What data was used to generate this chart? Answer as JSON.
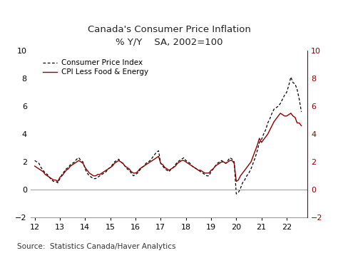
{
  "title_line1": "Canada's Consumer Price Inflation",
  "title_line2": "% Y/Y    SA, 2002=100",
  "source": "Source:  Statistics Canada/Haver Analytics",
  "legend": [
    "Consumer Price Index",
    "CPI Less Food & Energy"
  ],
  "cpi_color": "#000000",
  "core_color": "#8B0000",
  "ylim": [
    -2,
    10
  ],
  "yticks": [
    -2,
    0,
    2,
    4,
    6,
    8,
    10
  ],
  "xtick_labels": [
    "12",
    "13",
    "14",
    "15",
    "16",
    "17",
    "18",
    "19",
    "20",
    "21",
    "22"
  ],
  "xlim_start": 2011.83,
  "xlim_end": 2022.83,
  "background_color": "#ffffff",
  "cpi": [
    2.1,
    2.0,
    1.9,
    1.6,
    1.4,
    1.2,
    1.1,
    0.9,
    0.7,
    0.6,
    0.6,
    0.5,
    0.8,
    1.1,
    1.3,
    1.5,
    1.6,
    1.8,
    1.9,
    2.0,
    2.2,
    2.3,
    2.1,
    2.0,
    1.5,
    1.2,
    1.0,
    0.9,
    0.8,
    0.8,
    0.9,
    1.0,
    1.1,
    1.2,
    1.3,
    1.5,
    1.6,
    1.8,
    2.0,
    2.1,
    2.2,
    2.0,
    1.9,
    1.7,
    1.5,
    1.4,
    1.2,
    1.0,
    1.1,
    1.2,
    1.4,
    1.6,
    1.7,
    1.9,
    2.0,
    2.1,
    2.3,
    2.5,
    2.7,
    2.8,
    1.9,
    1.7,
    1.5,
    1.4,
    1.3,
    1.5,
    1.6,
    1.8,
    2.0,
    2.1,
    2.2,
    2.3,
    2.1,
    2.0,
    1.9,
    1.7,
    1.6,
    1.5,
    1.4,
    1.3,
    1.2,
    1.1,
    1.0,
    1.0,
    1.3,
    1.5,
    1.7,
    1.9,
    2.0,
    2.1,
    2.0,
    1.9,
    2.1,
    2.3,
    2.2,
    2.0,
    -0.3,
    -0.2,
    0.1,
    0.5,
    0.7,
    1.0,
    1.2,
    1.5,
    1.9,
    2.3,
    2.8,
    3.4,
    3.6,
    4.0,
    4.3,
    4.8,
    5.1,
    5.5,
    5.8,
    5.9,
    6.0,
    6.2,
    6.5,
    6.8,
    7.0,
    7.5,
    8.1,
    7.7,
    7.6,
    7.2,
    6.5,
    5.6
  ],
  "core": [
    1.7,
    1.6,
    1.5,
    1.4,
    1.3,
    1.1,
    1.0,
    0.9,
    0.8,
    0.7,
    0.7,
    0.6,
    0.9,
    1.0,
    1.2,
    1.4,
    1.5,
    1.7,
    1.8,
    1.9,
    2.0,
    2.1,
    2.0,
    1.9,
    1.6,
    1.4,
    1.2,
    1.1,
    1.0,
    1.0,
    1.1,
    1.1,
    1.2,
    1.3,
    1.4,
    1.5,
    1.6,
    1.7,
    1.9,
    2.0,
    2.1,
    2.0,
    1.9,
    1.7,
    1.6,
    1.5,
    1.3,
    1.2,
    1.2,
    1.3,
    1.5,
    1.6,
    1.7,
    1.8,
    1.9,
    2.0,
    2.1,
    2.2,
    2.3,
    2.4,
    1.9,
    1.8,
    1.6,
    1.5,
    1.4,
    1.5,
    1.6,
    1.7,
    1.9,
    2.0,
    2.1,
    2.1,
    2.0,
    1.9,
    1.8,
    1.7,
    1.6,
    1.5,
    1.4,
    1.4,
    1.3,
    1.2,
    1.2,
    1.2,
    1.4,
    1.5,
    1.7,
    1.8,
    1.9,
    2.0,
    2.0,
    1.9,
    2.0,
    2.1,
    2.1,
    1.9,
    0.6,
    0.7,
    1.0,
    1.2,
    1.4,
    1.6,
    1.8,
    2.0,
    2.4,
    2.8,
    3.2,
    3.7,
    3.4,
    3.6,
    3.8,
    4.0,
    4.3,
    4.6,
    4.9,
    5.1,
    5.3,
    5.5,
    5.4,
    5.3,
    5.3,
    5.4,
    5.5,
    5.3,
    5.2,
    4.8,
    4.8,
    4.6
  ]
}
